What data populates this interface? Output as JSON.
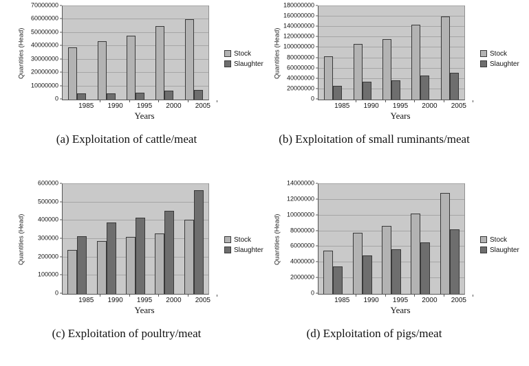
{
  "colors": {
    "stock": "#b3b3b3",
    "slaughter": "#6e6e6e",
    "plot_bg": "#c9c9c9",
    "gridline": "#a5a5a5",
    "bar_border": "#383838",
    "axis": "#555555"
  },
  "chart_data": [
    {
      "type": "bar",
      "caption": "(a) Exploitation of cattle/meat",
      "ylabel": "Quantities (Head)",
      "xlabel": "Years",
      "categories": [
        "1985",
        "1990",
        "1995",
        "2000",
        "2005"
      ],
      "series": [
        {
          "name": "Stock",
          "values": [
            39000000,
            44000000,
            48000000,
            55000000,
            60000000
          ]
        },
        {
          "name": "Slaughter",
          "values": [
            4500000,
            4500000,
            5000000,
            6500000,
            7000000
          ]
        }
      ],
      "ylim": [
        0,
        70000000
      ],
      "ytick_step": 10000000,
      "grid": true,
      "legend_position": "right"
    },
    {
      "type": "bar",
      "caption": "(b) Exploitation of small ruminants/meat",
      "ylabel": "Quantities (Head)",
      "xlabel": "Years",
      "categories": [
        "1985",
        "1990",
        "1995",
        "2000",
        "2005"
      ],
      "series": [
        {
          "name": "Stock",
          "values": [
            84000000,
            107000000,
            117000000,
            144000000,
            160000000
          ]
        },
        {
          "name": "Slaughter",
          "values": [
            26000000,
            34000000,
            37000000,
            47000000,
            52000000
          ]
        }
      ],
      "ylim": [
        0,
        180000000
      ],
      "ytick_step": 20000000,
      "grid": true,
      "legend_position": "right"
    },
    {
      "type": "bar",
      "caption": "(c) Exploitation of poultry/meat",
      "ylabel": "Quantities (Head)",
      "xlabel": "Years",
      "categories": [
        "1985",
        "1990",
        "1995",
        "2000",
        "2005"
      ],
      "series": [
        {
          "name": "Stock",
          "values": [
            240000,
            290000,
            310000,
            330000,
            405000
          ]
        },
        {
          "name": "Slaughter",
          "values": [
            315000,
            390000,
            415000,
            455000,
            565000
          ]
        }
      ],
      "ylim": [
        0,
        600000
      ],
      "ytick_step": 100000,
      "grid": true,
      "legend_position": "right"
    },
    {
      "type": "bar",
      "caption": "(d) Exploitation of pigs/meat",
      "ylabel": "Quantities (Head)",
      "xlabel": "Years",
      "categories": [
        "1985",
        "1990",
        "1995",
        "2000",
        "2005"
      ],
      "series": [
        {
          "name": "Stock",
          "values": [
            5500000,
            7800000,
            8700000,
            10200000,
            12900000
          ]
        },
        {
          "name": "Slaughter",
          "values": [
            3500000,
            4900000,
            5700000,
            6600000,
            8200000
          ]
        }
      ],
      "ylim": [
        0,
        14000000
      ],
      "ytick_step": 2000000,
      "grid": true,
      "legend_position": "right"
    }
  ]
}
